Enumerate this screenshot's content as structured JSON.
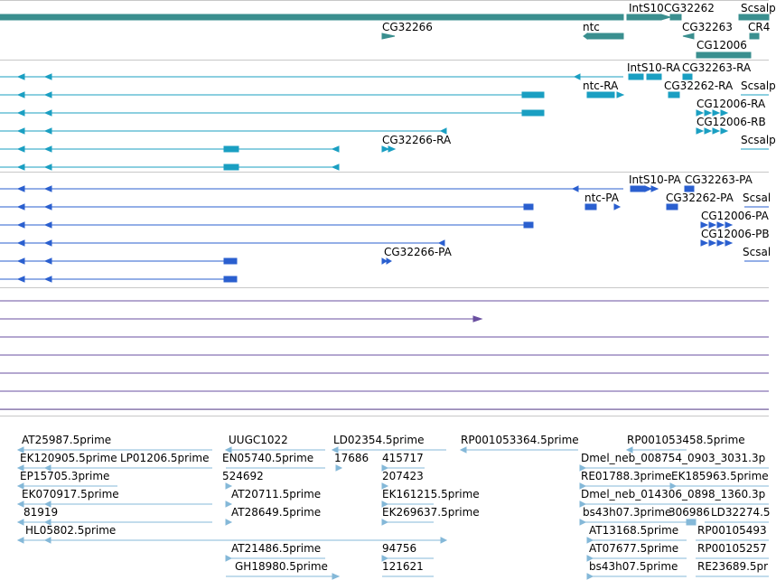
{
  "colors": {
    "gene": "#3a8f8f",
    "transcript": "#1a9fc2",
    "protein": "#2a5fcf",
    "other": "#6a4fa0",
    "est": "#84b8d8",
    "separator": "#c8c8c8"
  },
  "genes": [
    {
      "name": "IntS10"
    },
    {
      "name": "CG32262"
    },
    {
      "name": "Scsalp"
    },
    {
      "name": "CG32266"
    },
    {
      "name": "ntc"
    },
    {
      "name": "CG32263"
    },
    {
      "name": "CR4"
    },
    {
      "name": "CG12006"
    }
  ],
  "transcripts": [
    {
      "name": "IntS10-RA"
    },
    {
      "name": "CG32263-RA"
    },
    {
      "name": "ntc-RA"
    },
    {
      "name": "CG32262-RA"
    },
    {
      "name": "Scsalp"
    },
    {
      "name": "CG12006-RA"
    },
    {
      "name": "CG12006-RB"
    },
    {
      "name": "CG32266-RA"
    },
    {
      "name": "Scsalp"
    }
  ],
  "proteins": [
    {
      "name": "IntS10-PA"
    },
    {
      "name": "CG32263-PA"
    },
    {
      "name": "ntc-PA"
    },
    {
      "name": "CG32262-PA"
    },
    {
      "name": "Scsal"
    },
    {
      "name": "CG12006-PA"
    },
    {
      "name": "CG12006-PB"
    },
    {
      "name": "CG32266-PA"
    },
    {
      "name": "Scsal"
    }
  ],
  "ests": [
    {
      "name": "AT25987.5prime"
    },
    {
      "name": "UUGC1022"
    },
    {
      "name": "LD02354.5prime"
    },
    {
      "name": "RP001053364.5prime"
    },
    {
      "name": "RP001053458.5prime"
    },
    {
      "name": "EK120905.5prime"
    },
    {
      "name": "LP01206.5prime"
    },
    {
      "name": "EN05740.5prime"
    },
    {
      "name": "17686"
    },
    {
      "name": "415717"
    },
    {
      "name": "Dmel_neb_008754_0903_3031.3p"
    },
    {
      "name": "EP15705.3prime"
    },
    {
      "name": "524692"
    },
    {
      "name": "207423"
    },
    {
      "name": "RE01788.3prime"
    },
    {
      "name": "EK185963.5prime"
    },
    {
      "name": "EK070917.5prime"
    },
    {
      "name": "AT20711.5prime"
    },
    {
      "name": "EK161215.5prime"
    },
    {
      "name": "Dmel_neb_014306_0898_1360.3p"
    },
    {
      "name": "81919"
    },
    {
      "name": "AT28649.5prime"
    },
    {
      "name": "EK269637.5prime"
    },
    {
      "name": "bs43h07.3prime"
    },
    {
      "name": "306986"
    },
    {
      "name": "LD32274.5"
    },
    {
      "name": "HL05802.5prime"
    },
    {
      "name": "AT13168.5prime"
    },
    {
      "name": "RP00105493"
    },
    {
      "name": "AT21486.5prime"
    },
    {
      "name": "94756"
    },
    {
      "name": "AT07677.5prime"
    },
    {
      "name": "RP00105257"
    },
    {
      "name": "GH18980.5prime"
    },
    {
      "name": "121621"
    },
    {
      "name": "bs43h07.5prime"
    },
    {
      "name": "RE23689.5pr"
    }
  ]
}
